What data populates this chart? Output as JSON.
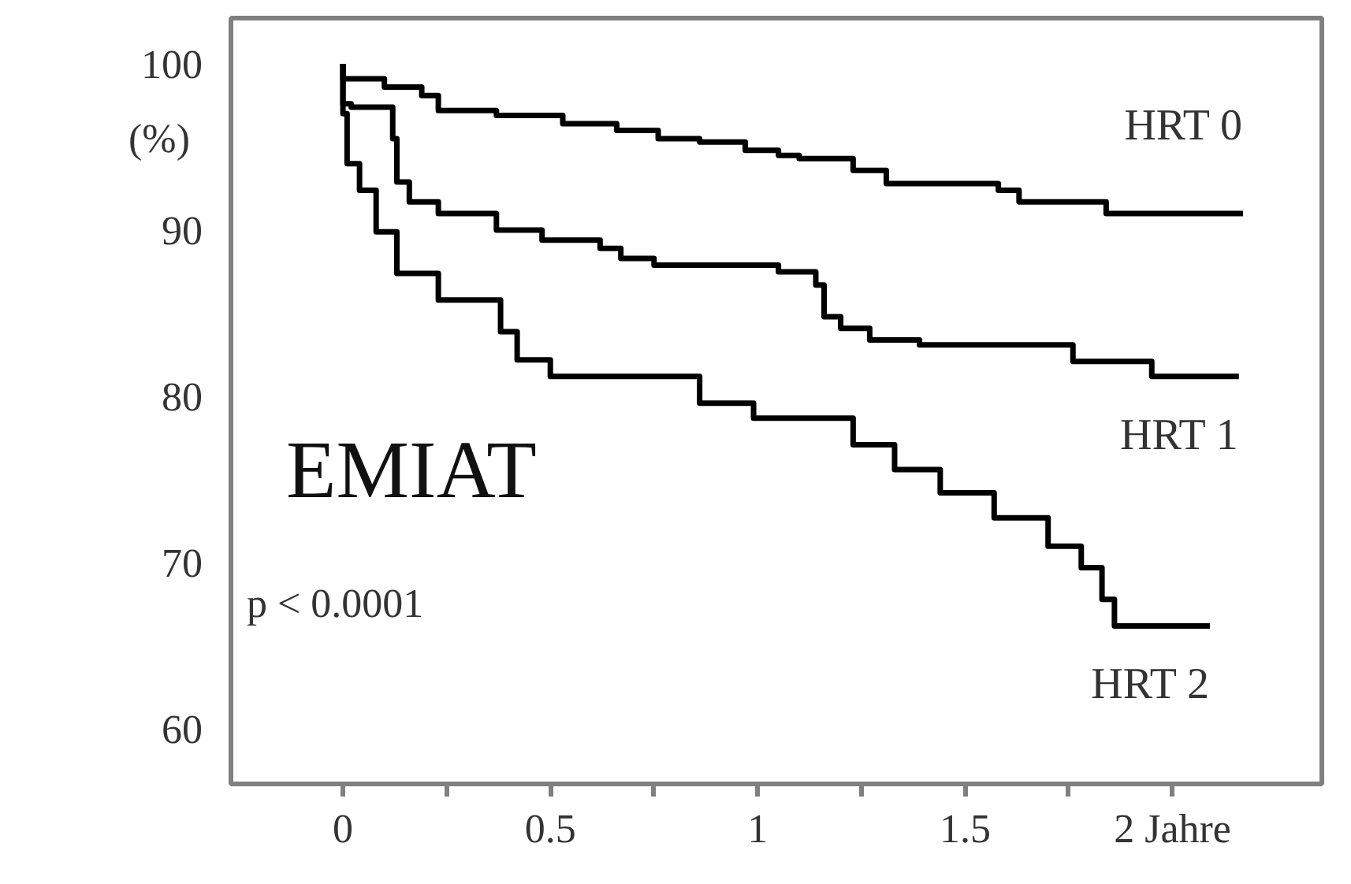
{
  "chart_data": {
    "type": "step",
    "xlabel": null,
    "ylabel": "(%)",
    "annotations": [
      "EMIAT",
      "p < 0.0001"
    ],
    "xlim": [
      -0.27,
      2.36
    ],
    "ylim": [
      56.7,
      102.75
    ],
    "xticks": [
      0,
      {
        "value": 0.25,
        "label": null
      },
      0.5,
      {
        "value": 0.75,
        "label": null
      },
      1,
      {
        "value": 1.25,
        "label": null
      },
      1.5,
      {
        "value": 1.75,
        "label": null
      },
      {
        "value": 2,
        "label": "2 Jahre"
      }
    ],
    "yticks": [
      60,
      70,
      80,
      90,
      100
    ],
    "grid": false,
    "marker": "none",
    "line_style": "solid",
    "series": [
      {
        "name": "HRT 0",
        "color": "#000000",
        "x": [
          0,
          0,
          0.1,
          0.19,
          0.23,
          0.37,
          0.53,
          0.66,
          0.76,
          0.86,
          0.97,
          1.05,
          1.1,
          1.23,
          1.31,
          1.58,
          1.63,
          1.84,
          2.17
        ],
        "values": [
          100,
          99.1,
          98.6,
          98.1,
          97.2,
          96.9,
          96.4,
          96.0,
          95.5,
          95.3,
          94.8,
          94.5,
          94.3,
          93.6,
          92.8,
          92.4,
          91.7,
          91.0,
          91.0
        ]
      },
      {
        "name": "HRT 1",
        "color": "#000000",
        "x": [
          0,
          0,
          0.02,
          0.12,
          0.13,
          0.16,
          0.23,
          0.37,
          0.48,
          0.62,
          0.67,
          0.75,
          1.05,
          1.14,
          1.16,
          1.2,
          1.27,
          1.39,
          1.76,
          1.95,
          2.16
        ],
        "values": [
          100,
          97.6,
          97.4,
          95.5,
          92.9,
          91.7,
          91.0,
          90.0,
          89.4,
          88.9,
          88.3,
          87.9,
          87.5,
          86.7,
          84.8,
          84.1,
          83.4,
          83.1,
          82.1,
          81.2,
          81.2
        ]
      },
      {
        "name": "HRT 2",
        "color": "#000000",
        "x": [
          0,
          0,
          0.01,
          0.04,
          0.08,
          0.13,
          0.23,
          0.38,
          0.42,
          0.5,
          0.86,
          0.99,
          1.23,
          1.33,
          1.44,
          1.57,
          1.7,
          1.78,
          1.83,
          1.86,
          2.09
        ],
        "values": [
          100,
          97,
          94.0,
          92.4,
          89.9,
          87.4,
          85.8,
          83.9,
          82.2,
          81.2,
          79.6,
          78.7,
          77.1,
          75.6,
          74.2,
          72.7,
          71.0,
          69.7,
          67.8,
          66.2,
          66.2
        ]
      }
    ]
  }
}
